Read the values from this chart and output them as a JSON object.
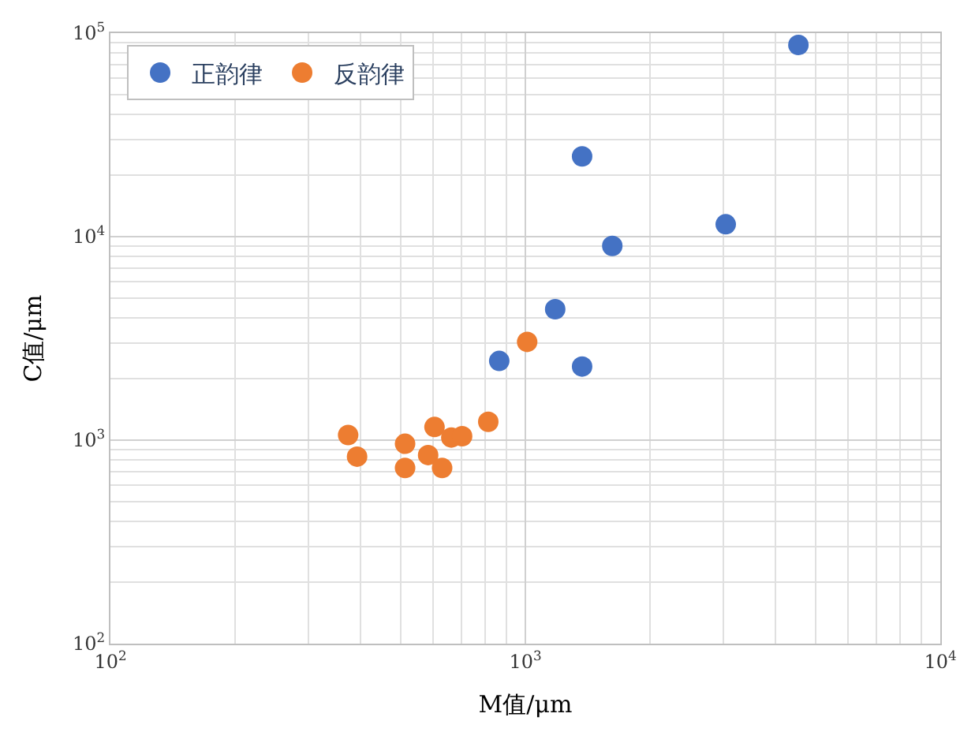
{
  "chart_data": {
    "type": "scatter",
    "xlabel": "M值/μm",
    "ylabel": "C值/μm",
    "log": "xy",
    "grid": true,
    "legend": "top left",
    "marker": "circle",
    "xlim": [
      100,
      10000
    ],
    "ylim": [
      100,
      100000
    ],
    "xticks": [
      {
        "value": 100,
        "label": "10$^{2}$"
      },
      {
        "value": 1000,
        "label": "10$^{3}$"
      },
      {
        "value": 10000,
        "label": "10$^{4}$"
      }
    ],
    "yticks": [
      {
        "value": 100,
        "label": "10$^{2}$"
      },
      {
        "value": 1000,
        "label": "10$^{3}$"
      },
      {
        "value": 10000,
        "label": "10$^{4}$"
      },
      {
        "value": 100000,
        "label": "10$^{5}$"
      }
    ],
    "series": [
      {
        "name": "正韵律",
        "color": "#4472c4",
        "x": [
          4550,
          1370,
          1620,
          3040,
          1180,
          865,
          1370
        ],
        "values": [
          87500,
          24800,
          9000,
          11500,
          4400,
          2450,
          2300
        ]
      },
      {
        "name": "反韵律",
        "color": "#ed7d31",
        "x": [
          1010,
          374,
          393,
          513,
          513,
          583,
          604,
          630,
          663,
          704,
          814
        ],
        "values": [
          3040,
          1060,
          830,
          960,
          730,
          845,
          1160,
          730,
          1030,
          1045,
          1230
        ]
      }
    ]
  }
}
